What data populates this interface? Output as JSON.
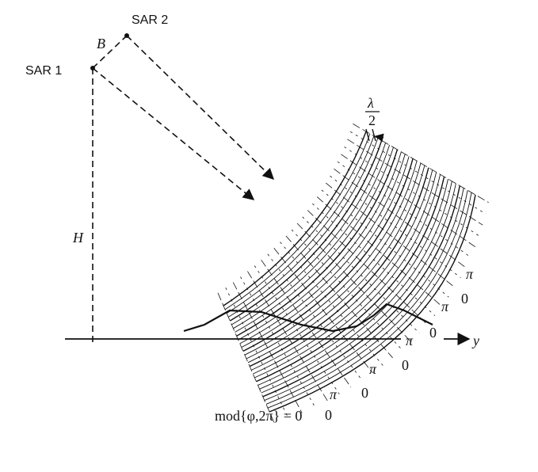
{
  "labels": {
    "sar1": "SAR 1",
    "sar2": "SAR 2",
    "baseline": "B",
    "height": "H",
    "y_axis": "y",
    "half_wavelength_num": "λ",
    "half_wavelength_den": "2",
    "formula": "mod{φ,2π} = 0"
  },
  "fringe_labels": [
    {
      "text": "π"
    },
    {
      "text": "0"
    },
    {
      "text": "π"
    },
    {
      "text": "0"
    },
    {
      "text": "π"
    },
    {
      "text": "0"
    },
    {
      "text": "π"
    },
    {
      "text": "0"
    },
    {
      "text": "π"
    },
    {
      "text": "0"
    }
  ],
  "colors": {
    "ink": "#111111",
    "background": "#ffffff"
  }
}
